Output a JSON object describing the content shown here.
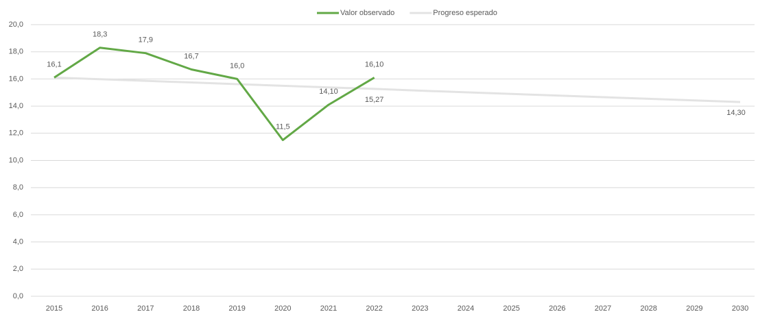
{
  "chart_data": {
    "type": "line",
    "categories": [
      "2015",
      "2016",
      "2017",
      "2018",
      "2019",
      "2020",
      "2021",
      "2022",
      "2023",
      "2024",
      "2025",
      "2026",
      "2027",
      "2028",
      "2029",
      "2030"
    ],
    "series": [
      {
        "name": "Valor observado",
        "color": "#62a846",
        "values": [
          16.1,
          18.3,
          17.9,
          16.7,
          16.0,
          11.5,
          14.1,
          16.1,
          null,
          null,
          null,
          null,
          null,
          null,
          null,
          null
        ],
        "value_labels": [
          "16,1",
          "18,3",
          "17,9",
          "16,7",
          "16,0",
          "11,5",
          "14,10",
          "16,10",
          null,
          null,
          null,
          null,
          null,
          null,
          null,
          null
        ]
      },
      {
        "name": "Progreso esperado",
        "color": "#e3e3e3",
        "values": [
          16.1,
          15.98,
          15.86,
          15.74,
          15.62,
          15.5,
          15.38,
          15.27,
          15.14,
          15.02,
          14.9,
          14.78,
          14.66,
          14.54,
          14.42,
          14.3
        ],
        "value_labels": [
          null,
          null,
          null,
          null,
          null,
          null,
          null,
          "15,27",
          null,
          null,
          null,
          null,
          null,
          null,
          null,
          "14,30"
        ]
      }
    ],
    "ylim": [
      0,
      20
    ],
    "yticks": [
      {
        "value": 0,
        "label": "0,0"
      },
      {
        "value": 2,
        "label": "2,0"
      },
      {
        "value": 4,
        "label": "4,0"
      },
      {
        "value": 6,
        "label": "6,0"
      },
      {
        "value": 8,
        "label": "8,0"
      },
      {
        "value": 10,
        "label": "10,0"
      },
      {
        "value": 12,
        "label": "12,0"
      },
      {
        "value": 14,
        "label": "14,0"
      },
      {
        "value": 16,
        "label": "16,0"
      },
      {
        "value": 18,
        "label": "18,0"
      },
      {
        "value": 20,
        "label": "20,0"
      }
    ],
    "grid": true,
    "legend": "top"
  }
}
